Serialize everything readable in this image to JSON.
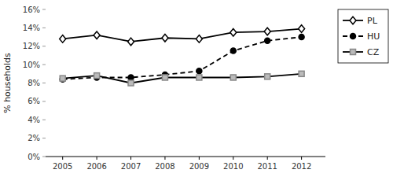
{
  "chart_data": {
    "type": "line",
    "y_label": "% households",
    "x": [
      2005,
      2006,
      2007,
      2008,
      2009,
      2010,
      2011,
      2012
    ],
    "xlim": [
      2004.5,
      2012.7
    ],
    "xticks": [
      2005,
      2006,
      2007,
      2008,
      2009,
      2010,
      2011,
      2012
    ],
    "ylim": [
      0,
      0.16
    ],
    "yticks": [
      {
        "value": 0,
        "label": "0%"
      },
      {
        "value": 0.02,
        "label": "2%"
      },
      {
        "value": 0.04,
        "label": "4%"
      },
      {
        "value": 0.06,
        "label": "6%"
      },
      {
        "value": 0.08,
        "label": "8%"
      },
      {
        "value": 0.1,
        "label": "10%"
      },
      {
        "value": 0.12,
        "label": "12%"
      },
      {
        "value": 0.14,
        "label": "14%"
      },
      {
        "value": 0.16,
        "label": "16%"
      }
    ],
    "legend": "right",
    "series": [
      {
        "name": "PL",
        "color": "#000000",
        "marker": "diamond",
        "line_style": "solid",
        "values": [
          0.128,
          0.132,
          0.125,
          0.129,
          0.128,
          0.135,
          0.136,
          0.139
        ]
      },
      {
        "name": "HU",
        "color": "#000000",
        "marker": "circle",
        "line_style": "dashed",
        "values": [
          0.084,
          0.086,
          0.086,
          0.089,
          0.093,
          0.115,
          0.126,
          0.13
        ]
      },
      {
        "name": "CZ",
        "color": "#000000",
        "marker": "square",
        "line_style": "solid",
        "values": [
          0.085,
          0.088,
          0.08,
          0.086,
          0.086,
          0.086,
          0.087,
          0.09
        ]
      }
    ]
  }
}
